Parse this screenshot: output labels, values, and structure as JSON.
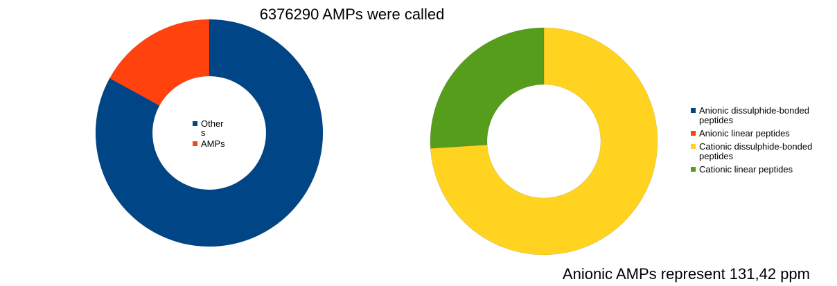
{
  "chart_data": [
    {
      "type": "pie",
      "style": "donut",
      "title": "6376290 AMPs were called",
      "legend_position": "center",
      "legend_lines": [
        [
          "Other",
          "s"
        ],
        [
          "AMPs"
        ]
      ],
      "categories": [
        "Others",
        "AMPs"
      ],
      "values": [
        83,
        17
      ],
      "colors": [
        "#004586",
        "#ff420e"
      ]
    },
    {
      "type": "pie",
      "style": "donut",
      "title": "Anionic AMPs represent 131,42 ppm",
      "title_position": "bottom-right",
      "legend_position": "right",
      "legend_lines": [
        [
          "Anionic dissulphide-bonded",
          "peptides"
        ],
        [
          "Anionic linear peptides"
        ],
        [
          "Cationic dissulphide-bonded",
          "peptides"
        ],
        [
          "Cationic linear peptides"
        ]
      ],
      "categories": [
        "Anionic dissulphide-bonded peptides",
        "Anionic linear peptides",
        "Cationic dissulphide-bonded peptides",
        "Cationic linear peptides"
      ],
      "values": [
        0,
        0,
        74,
        26
      ],
      "colors": [
        "#004586",
        "#ff420e",
        "#ffd320",
        "#579d1c"
      ]
    }
  ]
}
